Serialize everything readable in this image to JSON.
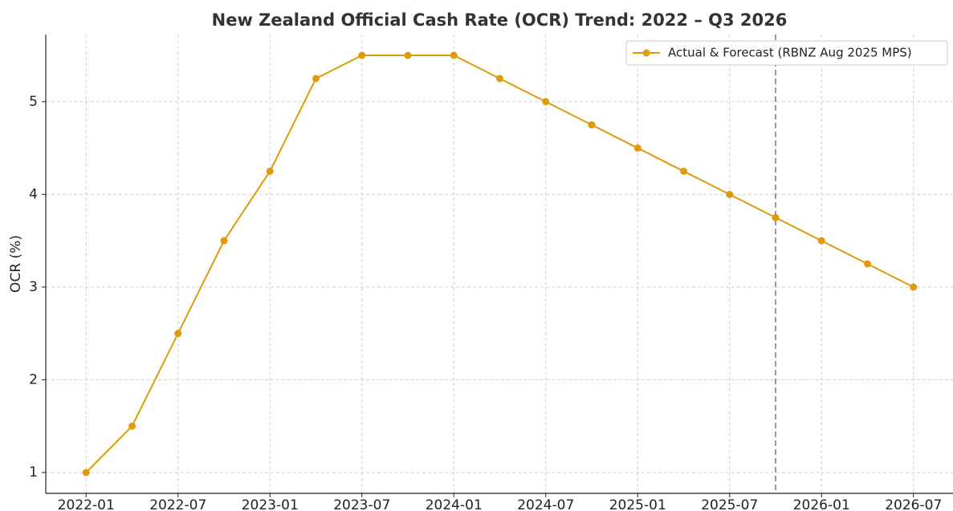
{
  "chart_data": {
    "type": "line",
    "title": "New Zealand Official Cash Rate (OCR) Trend: 2022 – Q3 2026",
    "y_label": "OCR (%)",
    "x": [
      "2022-01",
      "2022-04",
      "2022-07",
      "2022-10",
      "2023-01",
      "2023-04",
      "2023-07",
      "2023-10",
      "2024-01",
      "2024-04",
      "2024-07",
      "2024-10",
      "2025-01",
      "2025-04",
      "2025-07",
      "2025-10",
      "2026-01",
      "2026-04",
      "2026-07"
    ],
    "series": [
      {
        "name": "Actual & Forecast (RBNZ Aug 2025 MPS)",
        "color": "#e09b0c",
        "values": [
          1.0,
          1.5,
          2.5,
          3.5,
          4.25,
          5.25,
          5.5,
          5.5,
          5.5,
          5.25,
          5.0,
          4.75,
          4.5,
          4.25,
          4.0,
          3.75,
          3.5,
          3.25,
          3.0
        ]
      }
    ],
    "xlim": [
      "2021-10",
      "2026-10"
    ],
    "xticks": [
      "2022-01",
      "2022-07",
      "2023-01",
      "2023-07",
      "2024-01",
      "2024-07",
      "2025-01",
      "2025-07",
      "2026-01",
      "2026-07"
    ],
    "ylim": [
      0.775,
      5.725
    ],
    "yticks": [
      1,
      2,
      3,
      4,
      5
    ],
    "vline": "2025-10",
    "grid": true,
    "legend": "upper right"
  }
}
